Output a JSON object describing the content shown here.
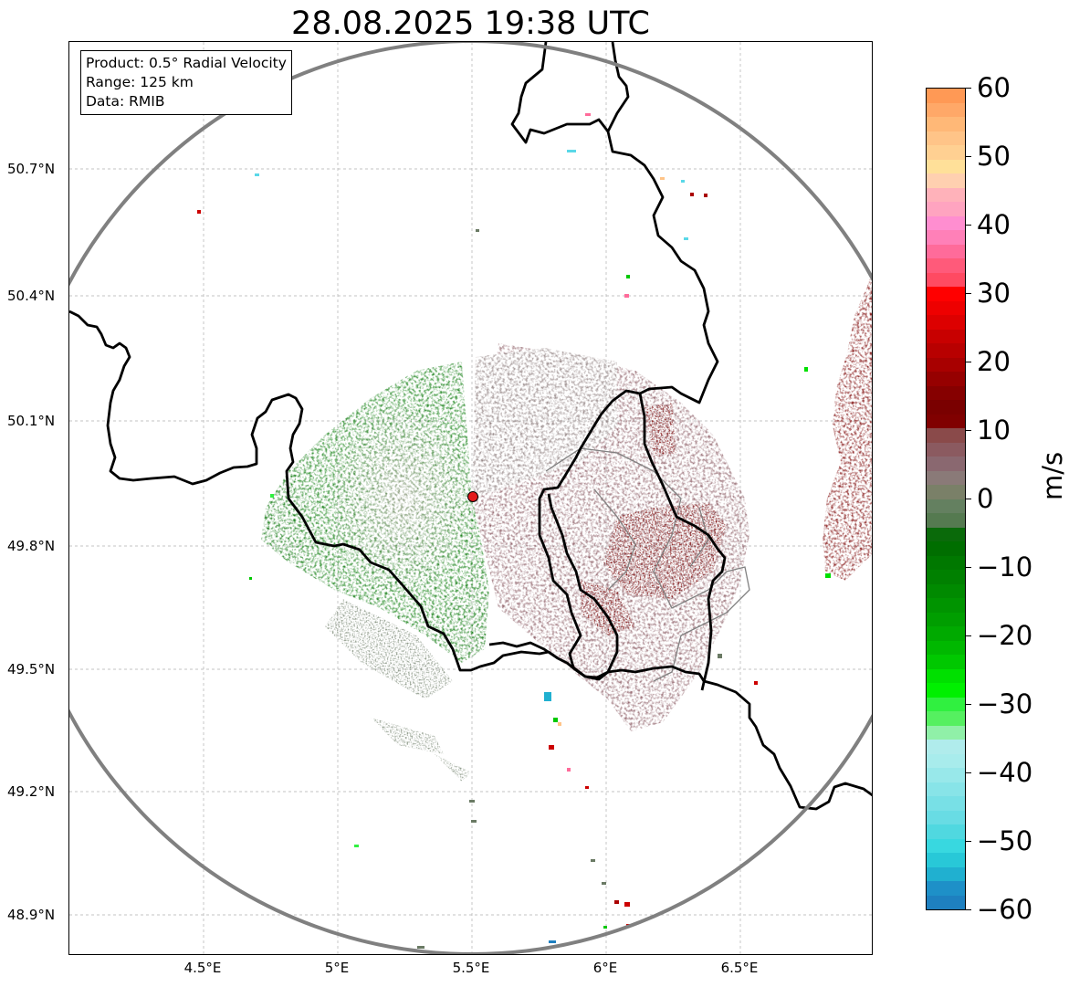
{
  "title": "28.08.2025 19:38 UTC",
  "info_box": {
    "product": "Product: 0.5° Radial Velocity",
    "range": "Range: 125 km",
    "data": "Data: RMIB"
  },
  "map": {
    "lat_ticks": [
      "50.7°N",
      "50.4°N",
      "50.1°N",
      "49.8°N",
      "49.5°N",
      "49.2°N",
      "48.9°N"
    ],
    "lon_ticks": [
      "4.5°E",
      "5°E",
      "5.5°E",
      "6°E",
      "6.5°E"
    ],
    "radar_site_color": "#e31a1c",
    "range_ring_color": "#808080",
    "border_color": "#000000",
    "gridlines": "dashed"
  },
  "colorbar": {
    "unit": "m/s",
    "ticks": [
      "60",
      "50",
      "40",
      "30",
      "20",
      "10",
      "0",
      "−10",
      "−20",
      "−30",
      "−40",
      "−50",
      "−60"
    ],
    "colors_top_to_bottom": [
      "#ff9955",
      "#ffa868",
      "#ffb877",
      "#ffc488",
      "#ffd092",
      "#ffe099",
      "#ffd0b0",
      "#ffb2ba",
      "#ffa4c0",
      "#ff8ed0",
      "#ff80b8",
      "#ff6b9a",
      "#ff5a7a",
      "#ff4a62",
      "#ff0000",
      "#ee0000",
      "#dd0000",
      "#c80000",
      "#b80000",
      "#a80000",
      "#960000",
      "#860000",
      "#7a0000",
      "#800000",
      "#8a4a4a",
      "#8b5a60",
      "#8a6870",
      "#8a7a78",
      "#7a8068",
      "#648060",
      "#557a50",
      "#0a6a0a",
      "#006e00",
      "#007800",
      "#008000",
      "#008a00",
      "#009400",
      "#009e00",
      "#00aa00",
      "#00b800",
      "#00c800",
      "#00e000",
      "#00f000",
      "#30f040",
      "#55f060",
      "#90f0a8",
      "#b0ecec",
      "#a8ecec",
      "#98e8ea",
      "#88e4e8",
      "#78e0e6",
      "#68dce4",
      "#50d8e0",
      "#38d8e0",
      "#28c8d8",
      "#20b0d0",
      "#1e90c8",
      "#1e80c0"
    ]
  }
}
